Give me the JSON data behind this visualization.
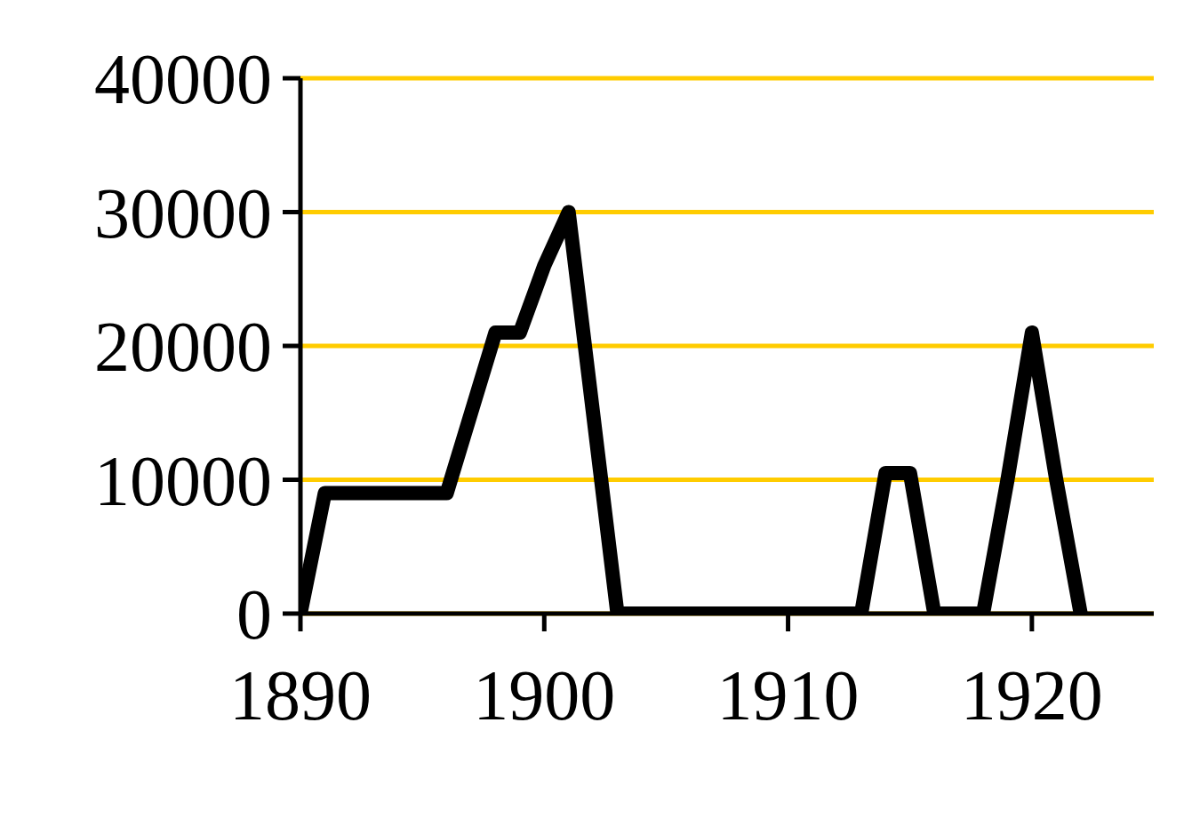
{
  "chart_data": {
    "type": "line",
    "x": [
      1890,
      1891,
      1896,
      1897,
      1898,
      1899,
      1900,
      1901,
      1902,
      1903,
      1913,
      1914,
      1915,
      1916,
      1918,
      1919,
      1920,
      1921,
      1922
    ],
    "values": [
      0,
      9000,
      9000,
      15000,
      21000,
      21000,
      26000,
      30000,
      15000,
      0,
      0,
      10500,
      10500,
      0,
      0,
      10000,
      21000,
      10000,
      0
    ],
    "color": "#000000",
    "xlim": [
      1890,
      1925
    ],
    "xticks": [
      1890,
      1900,
      1910,
      1920
    ],
    "ylim": [
      0,
      40000
    ],
    "yticks": [
      0,
      10000,
      20000,
      30000,
      40000
    ],
    "grid": "y",
    "legend": false,
    "marker": "none",
    "line_style": "solid"
  }
}
